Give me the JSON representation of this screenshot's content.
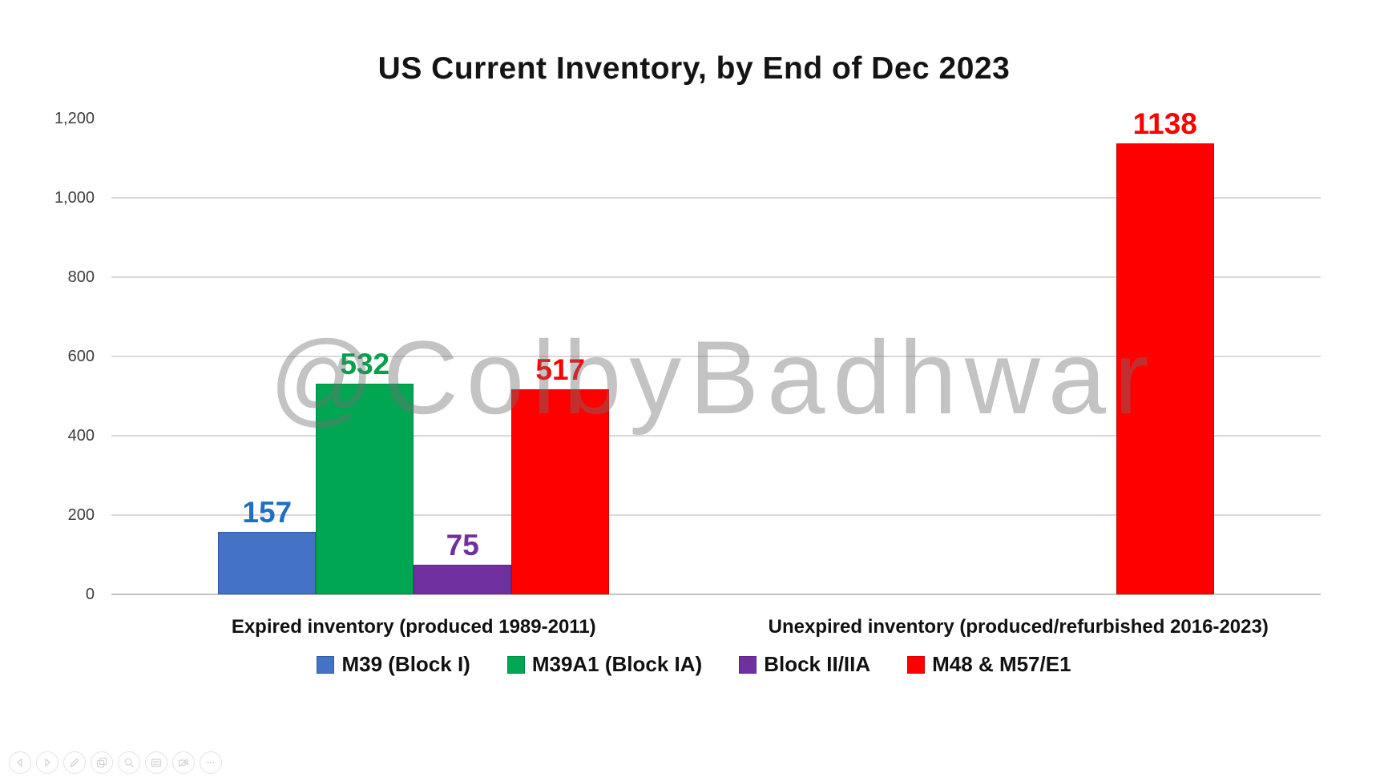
{
  "title": "US Current Inventory, by End of Dec 2023",
  "watermark": "@ColbyBadhwar",
  "chart_data": {
    "type": "bar",
    "title": "US Current Inventory, by End of Dec 2023",
    "categories": [
      "Expired inventory (produced 1989-2011)",
      "Unexpired inventory (produced/refurbished 2016-2023)"
    ],
    "series": [
      {
        "name": "M39 (Block I)",
        "color": "#4472C4",
        "border": "#2E5C9E",
        "label_color": "#1F6FC4",
        "values": [
          157,
          null
        ]
      },
      {
        "name": "M39A1 (Block IA)",
        "color": "#00A651",
        "border": "#008A43",
        "label_color": "#00A14B",
        "values": [
          532,
          null
        ]
      },
      {
        "name": "Block II/IIA",
        "color": "#7030A0",
        "border": "#5C2683",
        "label_color": "#7030A0",
        "values": [
          75,
          null
        ]
      },
      {
        "name": "M48 & M57/E1",
        "color": "#FF0000",
        "border": "#D50000",
        "label_color": "#FF0000",
        "values": [
          517,
          1138
        ]
      }
    ],
    "y_axis": {
      "min": 0,
      "max": 1200,
      "tick_interval": 200,
      "ticks": [
        {
          "value": 0,
          "label": "0"
        },
        {
          "value": 200,
          "label": "200"
        },
        {
          "value": 400,
          "label": "400"
        },
        {
          "value": 600,
          "label": "600"
        },
        {
          "value": 800,
          "label": "800"
        },
        {
          "value": 1000,
          "label": "1,000"
        },
        {
          "value": 1200,
          "label": "1,200"
        }
      ]
    },
    "grid": true,
    "legend_position": "bottom",
    "colors": {
      "gridline": "#d9d9d9",
      "axis_line": "#c3c3c3",
      "tick_text": "#3d3d3d",
      "watermark_gray": "#c2c2c2"
    }
  },
  "toolbar": {
    "buttons": [
      {
        "name": "previous",
        "icon": "previous-icon"
      },
      {
        "name": "next",
        "icon": "next-icon"
      },
      {
        "name": "annotate",
        "icon": "pencil-icon"
      },
      {
        "name": "copy-image",
        "icon": "copy-icon"
      },
      {
        "name": "zoom",
        "icon": "magnifier-icon"
      },
      {
        "name": "thumbnails",
        "icon": "card-icon"
      },
      {
        "name": "video-off",
        "icon": "video-off-icon"
      },
      {
        "name": "more",
        "icon": "ellipsis-icon"
      }
    ]
  }
}
